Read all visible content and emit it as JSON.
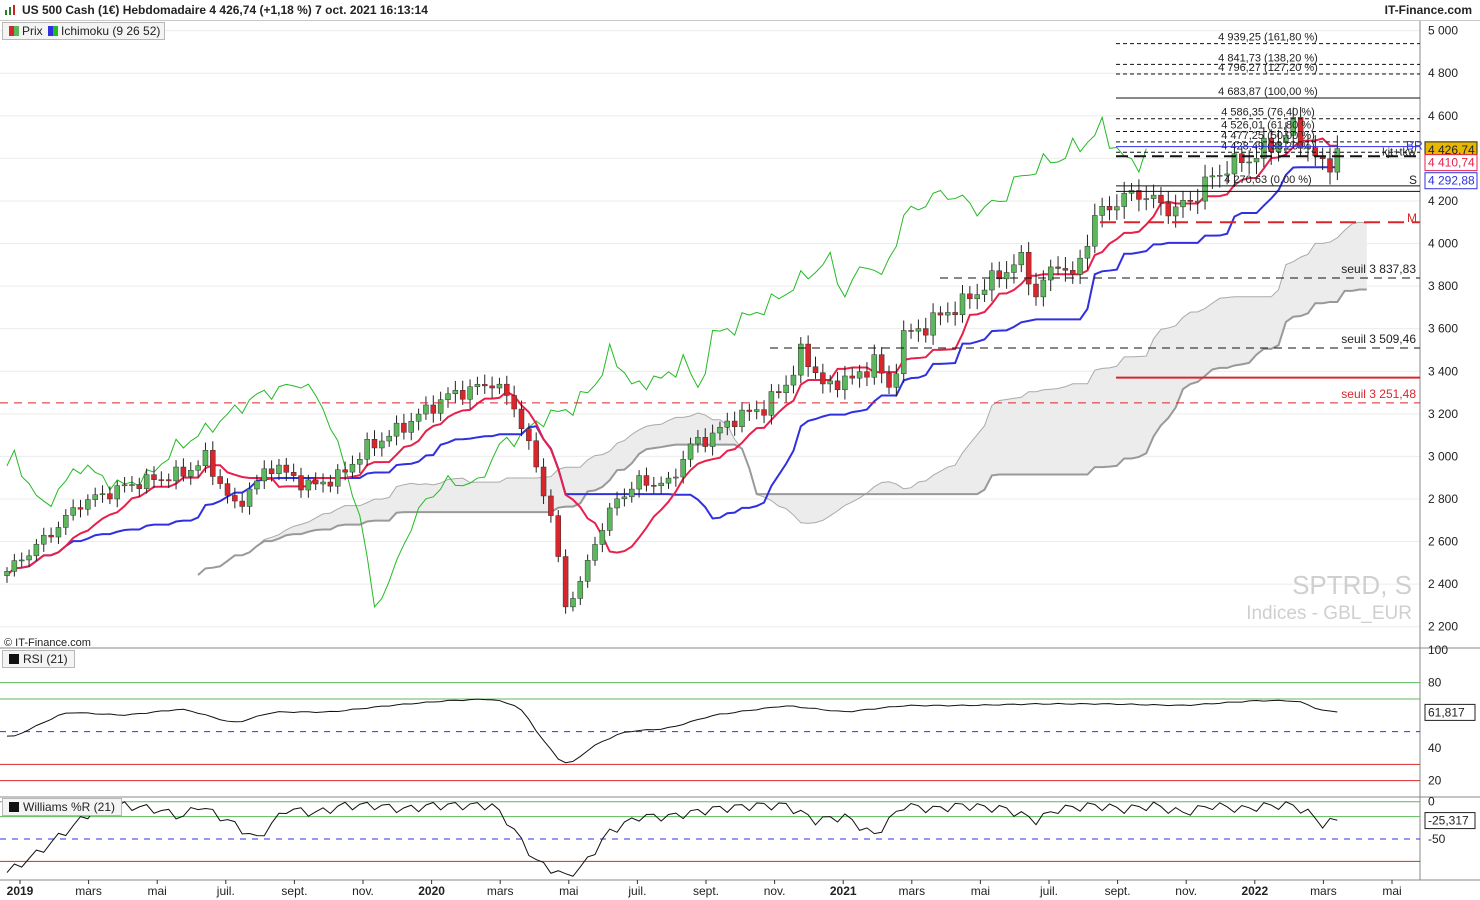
{
  "header": {
    "title": "US 500 Cash (1€) Hebdomadaire 4 426,74 (+1,18 %) 7 oct. 2021 16:13:14",
    "brand": "IT-Finance.com"
  },
  "legend": {
    "price": "Prix",
    "ichimoku": "Ichimoku (9 26 52)"
  },
  "copyright": "© IT-Finance.com",
  "watermark": {
    "symbol": "SPTRD, S",
    "sub": "Indices - GBL_EUR"
  },
  "colors": {
    "bull": "#5cb85c",
    "bear": "#d9262c",
    "tenkan": "#e8204a",
    "kijun": "#3030e0",
    "chikou": "#22bb22",
    "cloud": "#ececec",
    "ssb": "#999999"
  },
  "chart_data": [
    {
      "type": "candlestick",
      "title": "US 500 Cash (1€) Hebdomadaire",
      "ylim": [
        2100,
        5050
      ],
      "y_ticks": [
        "2 200",
        "2 400",
        "2 600",
        "2 800",
        "3 000",
        "3 200",
        "3 400",
        "3 600",
        "3 800",
        "4 000",
        "4 200",
        "4 400",
        "4 600",
        "4 800",
        "5 000"
      ],
      "x_ticks": [
        "2019",
        "mars",
        "mai",
        "juil.",
        "sept.",
        "nov.",
        "2020",
        "mars",
        "mai",
        "juil.",
        "sept.",
        "nov.",
        "2021",
        "mars",
        "mai",
        "juil.",
        "sept.",
        "nov.",
        "2022",
        "mars",
        "mai"
      ],
      "close_anchors": [
        [
          0,
          2460
        ],
        [
          6,
          2640
        ],
        [
          10,
          2780
        ],
        [
          17,
          2870
        ],
        [
          24,
          2920
        ],
        [
          27,
          2990
        ],
        [
          31,
          2760
        ],
        [
          36,
          2960
        ],
        [
          41,
          2860
        ],
        [
          45,
          2900
        ],
        [
          49,
          3040
        ],
        [
          53,
          3120
        ],
        [
          58,
          3240
        ],
        [
          61,
          3300
        ],
        [
          63,
          3310
        ],
        [
          66,
          3350
        ],
        [
          69,
          3240
        ],
        [
          72,
          2950
        ],
        [
          74,
          2720
        ],
        [
          76,
          2300
        ],
        [
          78,
          2400
        ],
        [
          80,
          2600
        ],
        [
          83,
          2800
        ],
        [
          86,
          2880
        ],
        [
          90,
          2870
        ],
        [
          93,
          3050
        ],
        [
          96,
          3100
        ],
        [
          99,
          3180
        ],
        [
          103,
          3230
        ],
        [
          106,
          3340
        ],
        [
          108,
          3480
        ],
        [
          110,
          3400
        ],
        [
          112,
          3310
        ],
        [
          114,
          3380
        ],
        [
          116,
          3360
        ],
        [
          118,
          3470
        ],
        [
          120,
          3300
        ],
        [
          122,
          3570
        ],
        [
          124,
          3590
        ],
        [
          126,
          3640
        ],
        [
          128,
          3680
        ],
        [
          130,
          3720
        ],
        [
          133,
          3800
        ],
        [
          136,
          3880
        ],
        [
          138,
          3920
        ],
        [
          140,
          3760
        ],
        [
          143,
          3920
        ],
        [
          145,
          3830
        ],
        [
          148,
          4120
        ],
        [
          151,
          4200
        ],
        [
          154,
          4240
        ],
        [
          157,
          4180
        ],
        [
          159,
          4160
        ],
        [
          161,
          4200
        ],
        [
          163,
          4280
        ],
        [
          166,
          4360
        ],
        [
          169,
          4400
        ],
        [
          172,
          4460
        ],
        [
          175,
          4540
        ],
        [
          177,
          4450
        ],
        [
          179,
          4360
        ],
        [
          181,
          4427
        ]
      ],
      "fibonacci": [
        {
          "level": "4 939,25 (161,80 %)",
          "value": 4939.25
        },
        {
          "level": "4 841,73 (138,20 %)",
          "value": 4841.73
        },
        {
          "level": "4 796,27 (127,20 %)",
          "value": 4796.27
        },
        {
          "level": "4 683,87 (100,00 %)",
          "value": 4683.87
        },
        {
          "level": "4 586,35 (76,40 %)",
          "value": 4586.35
        },
        {
          "level": "4 526,01 (61,80 %)",
          "value": 4526.01
        },
        {
          "level": "4 477,25 (50,00 %)",
          "value": 4477.25
        },
        {
          "level": "4 428,49 (38,20 %)",
          "value": 4428.49
        },
        {
          "level": "4 270,63 (0,00 %)",
          "value": 4270.63
        }
      ],
      "markers": {
        "br": "BR",
        "kjtkw": "kjt+tkw",
        "s": "S",
        "m": "M"
      },
      "supports": [
        {
          "label": "seuil 3 837,83",
          "value": 3837.83
        },
        {
          "label": "seuil 3 509,46",
          "value": 3509.46
        },
        {
          "label": "seuil 3 251,48",
          "value": 3251.48
        }
      ],
      "badges": {
        "last": "4 426,74",
        "tenkan": "4 410,74",
        "kijun": "4 292,88"
      }
    },
    {
      "type": "line",
      "title": "RSI (21)",
      "ylim": [
        10,
        100
      ],
      "y_ticks": [
        "100",
        "80",
        "60",
        "40",
        "20"
      ],
      "levels": [
        80,
        70,
        50,
        30,
        20
      ],
      "last": "61,817",
      "anchors": [
        [
          0,
          45
        ],
        [
          8,
          62
        ],
        [
          16,
          60
        ],
        [
          24,
          64
        ],
        [
          31,
          55
        ],
        [
          36,
          62
        ],
        [
          44,
          62
        ],
        [
          52,
          66
        ],
        [
          60,
          69
        ],
        [
          66,
          70
        ],
        [
          70,
          65
        ],
        [
          72,
          50
        ],
        [
          76,
          28
        ],
        [
          80,
          42
        ],
        [
          84,
          50
        ],
        [
          90,
          52
        ],
        [
          96,
          60
        ],
        [
          106,
          66
        ],
        [
          114,
          62
        ],
        [
          122,
          66
        ],
        [
          130,
          66
        ],
        [
          140,
          67
        ],
        [
          150,
          67
        ],
        [
          160,
          66
        ],
        [
          170,
          69
        ],
        [
          175,
          69
        ],
        [
          177,
          67
        ],
        [
          179,
          62
        ],
        [
          181,
          63
        ]
      ]
    },
    {
      "type": "line",
      "title": "Williams %R (21)",
      "ylim": [
        -105,
        5
      ],
      "y_ticks": [
        "0",
        "-50"
      ],
      "levels": [
        0,
        -20,
        -50,
        -80
      ],
      "last": "-25,317",
      "anchors": [
        [
          0,
          -95
        ],
        [
          4,
          -70
        ],
        [
          8,
          -40
        ],
        [
          12,
          -10
        ],
        [
          16,
          -5
        ],
        [
          20,
          -10
        ],
        [
          24,
          -20
        ],
        [
          26,
          -5
        ],
        [
          30,
          -25
        ],
        [
          34,
          -50
        ],
        [
          38,
          -10
        ],
        [
          42,
          -15
        ],
        [
          46,
          -5
        ],
        [
          50,
          -5
        ],
        [
          54,
          -10
        ],
        [
          58,
          -5
        ],
        [
          62,
          -5
        ],
        [
          66,
          -5
        ],
        [
          68,
          -25
        ],
        [
          72,
          -80
        ],
        [
          76,
          -100
        ],
        [
          78,
          -90
        ],
        [
          82,
          -40
        ],
        [
          86,
          -20
        ],
        [
          90,
          -20
        ],
        [
          96,
          -10
        ],
        [
          102,
          -5
        ],
        [
          106,
          -5
        ],
        [
          110,
          -25
        ],
        [
          114,
          -20
        ],
        [
          118,
          -45
        ],
        [
          122,
          -5
        ],
        [
          126,
          -10
        ],
        [
          130,
          -5
        ],
        [
          136,
          -10
        ],
        [
          140,
          -25
        ],
        [
          143,
          -10
        ],
        [
          148,
          -5
        ],
        [
          152,
          -10
        ],
        [
          156,
          -5
        ],
        [
          160,
          -15
        ],
        [
          164,
          -5
        ],
        [
          168,
          -10
        ],
        [
          172,
          -5
        ],
        [
          175,
          -5
        ],
        [
          177,
          -15
        ],
        [
          179,
          -30
        ],
        [
          181,
          -25
        ]
      ]
    }
  ]
}
